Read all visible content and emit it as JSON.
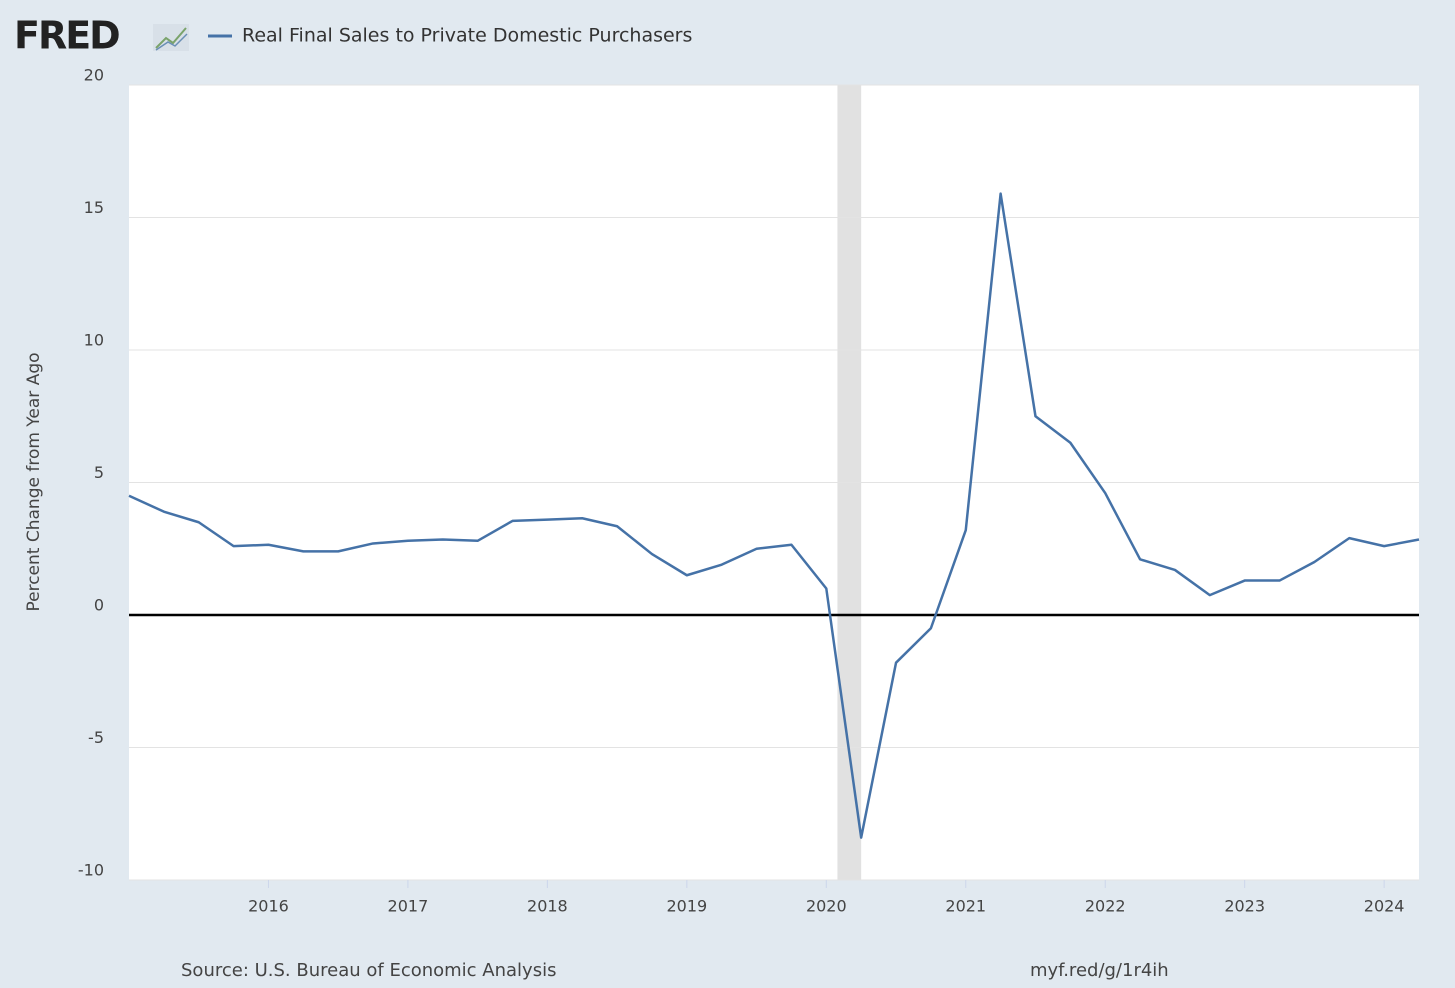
{
  "logo": "FRED",
  "chart_data": {
    "type": "line",
    "series": [
      {
        "name": "Real Final Sales to Private Domestic Purchasers",
        "color": "#4572a7",
        "values": [
          4.5,
          3.9,
          3.5,
          2.6,
          2.65,
          2.4,
          2.4,
          2.7,
          2.8,
          2.85,
          2.8,
          3.55,
          3.6,
          3.65,
          3.35,
          2.3,
          1.5,
          1.9,
          2.5,
          2.65,
          1.0,
          -8.4,
          -1.8,
          -0.5,
          3.2,
          15.9,
          7.5,
          6.5,
          4.6,
          2.1,
          1.7,
          0.75,
          1.3,
          1.3,
          2.0,
          2.9,
          2.6,
          2.85
        ]
      }
    ],
    "x": [
      2015,
      2015.25,
      2015.5,
      2015.75,
      2016,
      2016.25,
      2016.5,
      2016.75,
      2017,
      2017.25,
      2017.5,
      2017.75,
      2018,
      2018.25,
      2018.5,
      2018.75,
      2019,
      2019.25,
      2019.5,
      2019.75,
      2020,
      2020.25,
      2020.5,
      2020.75,
      2021,
      2021.25,
      2021.5,
      2021.75,
      2022,
      2022.25,
      2022.5,
      2022.75,
      2023,
      2023.25,
      2023.5,
      2023.75,
      2024,
      2024.25
    ],
    "xlim": [
      2015,
      2024.25
    ],
    "xticks": [
      2016,
      2017,
      2018,
      2019,
      2020,
      2021,
      2022,
      2023,
      2024
    ],
    "ylim": [
      -10,
      20
    ],
    "yticks": [
      -10,
      -5,
      0,
      5,
      10,
      15,
      20
    ],
    "y_label": "Percent Change from Year Ago",
    "recession": [
      2020.08,
      2020.25
    ],
    "grid": true,
    "source": "Source: U.S. Bureau of Economic Analysis",
    "link": "myf.red/g/1r4ih"
  }
}
